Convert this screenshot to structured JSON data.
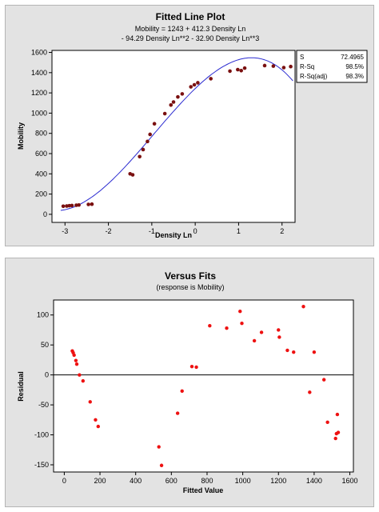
{
  "chart_data": [
    {
      "type": "scatter",
      "title": "Fitted Line Plot",
      "subtitle_line1": "Mobility =  1243 + 412.3 Density Ln",
      "subtitle_line2": "- 94.29 Density Ln**2 - 32.90 Density Ln**3",
      "xlabel": "Density Ln",
      "ylabel": "Mobility",
      "xlim": [
        -3.3,
        2.3
      ],
      "ylim": [
        -80,
        1620
      ],
      "xticks": [
        -3,
        -2,
        -1,
        0,
        1,
        2
      ],
      "yticks": [
        0,
        200,
        400,
        600,
        800,
        1000,
        1200,
        1400,
        1600
      ],
      "point_color": "#7a1010",
      "line_color": "#2a2ad0",
      "fit_coefficients": [
        1243,
        412.3,
        -94.29,
        -32.9
      ],
      "stats": {
        "rows": [
          {
            "label": "S",
            "value": "72.4965"
          },
          {
            "label": "R-Sq",
            "value": "98.5%"
          },
          {
            "label": "R-Sq(adj)",
            "value": "98.3%"
          }
        ]
      },
      "x": [
        -3.04,
        -2.96,
        -2.9,
        -2.84,
        -2.74,
        -2.68,
        -2.46,
        -2.38,
        -1.5,
        -1.44,
        -1.28,
        -1.2,
        -1.1,
        -1.04,
        -0.94,
        -0.7,
        -0.56,
        -0.5,
        -0.4,
        -0.3,
        -0.1,
        -0.02,
        0.06,
        0.36,
        0.8,
        0.98,
        1.06,
        1.14,
        1.6,
        1.8,
        2.04,
        2.2
      ],
      "y": [
        80,
        82,
        85,
        87,
        90,
        92,
        98,
        100,
        400,
        390,
        570,
        640,
        720,
        790,
        895,
        995,
        1080,
        1110,
        1160,
        1190,
        1260,
        1280,
        1300,
        1340,
        1415,
        1430,
        1420,
        1445,
        1470,
        1465,
        1450,
        1460
      ]
    },
    {
      "type": "scatter",
      "title": "Versus Fits",
      "subtitle": "(response is Mobility)",
      "xlabel": "Fitted Value",
      "ylabel": "Residual",
      "xlim": [
        -60,
        1620
      ],
      "ylim": [
        -162,
        125
      ],
      "xticks": [
        0,
        200,
        400,
        600,
        800,
        1000,
        1200,
        1400,
        1600
      ],
      "yticks": [
        -150,
        -100,
        -50,
        0,
        50,
        100
      ],
      "reference_line": 0,
      "point_color": "#ee1111",
      "x": [
        45,
        50,
        55,
        65,
        70,
        85,
        105,
        145,
        175,
        190,
        530,
        545,
        635,
        660,
        715,
        740,
        815,
        910,
        985,
        995,
        1065,
        1105,
        1200,
        1205,
        1250,
        1285,
        1340,
        1375,
        1400,
        1455,
        1475,
        1520,
        1525,
        1530,
        1535
      ],
      "y": [
        40,
        37,
        33,
        24,
        18,
        0,
        -10,
        -45,
        -75,
        -86,
        -120,
        -151,
        -64,
        -27,
        14,
        13,
        82,
        78,
        106,
        86,
        57,
        71,
        75,
        63,
        41,
        38,
        114,
        -29,
        38,
        -8,
        -79,
        -106,
        -98,
        -66,
        -96
      ]
    }
  ]
}
